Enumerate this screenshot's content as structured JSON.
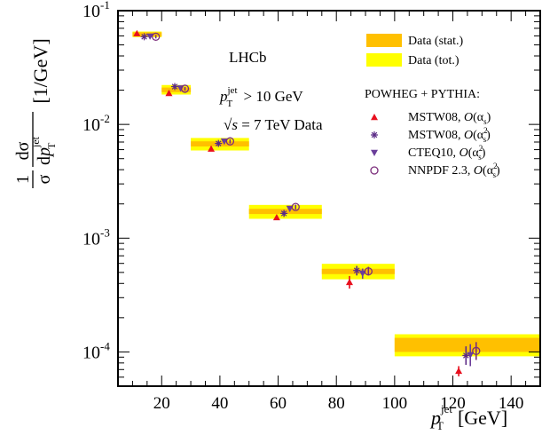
{
  "chart_data": {
    "type": "scatter",
    "x_scale": "linear",
    "y_scale": "log",
    "xlim": [
      5,
      150
    ],
    "ylim": [
      5e-05,
      0.1
    ],
    "x_ticks": [
      20,
      40,
      60,
      80,
      100,
      120,
      140
    ],
    "x_tick_labels": [
      "20",
      "40",
      "60",
      "80",
      "100",
      "120",
      "140"
    ],
    "y_ticks": [
      0.0001,
      0.001,
      0.01,
      0.1
    ],
    "y_tick_labels": [
      {
        "base": "10",
        "exp": "-4"
      },
      {
        "base": "10",
        "exp": "-3"
      },
      {
        "base": "10",
        "exp": "-2"
      },
      {
        "base": "10",
        "exp": "-1"
      }
    ],
    "xlabel": {
      "main": "p",
      "sup": "jet",
      "sub": "T",
      "unit": "[GeV]"
    },
    "ylabel": {
      "num": "1",
      "den": "σ",
      "frac_num": "dσ",
      "frac_den": "dp",
      "frac_sup": "jet",
      "frac_sub": "T",
      "unit": "[1/GeV]"
    },
    "annotations": {
      "experiment": "LHCb",
      "cut_pre": "p",
      "cut_sup": "jet",
      "cut_sub": "T",
      "cut_post": " > 10 GeV",
      "energy_sqrt": "√",
      "energy_s": "s",
      "energy_post": " = 7 TeV Data"
    },
    "legend": {
      "placement": "top-right",
      "data_items": [
        {
          "label": "Data (stat.)",
          "color": "#ffc000"
        },
        {
          "label": "Data (tot.)",
          "color": "#ffff00"
        }
      ],
      "theory_header": "POWHEG + PYTHIA:",
      "theory_items": [
        {
          "label": "MSTW08, ",
          "order_pre": "O(α",
          "order_sub": "s",
          "order_sup": "",
          "order_post": ")",
          "marker": "triangle-up",
          "color": "#e8101e"
        },
        {
          "label": "MSTW08, ",
          "order_pre": "O(α",
          "order_sub": "s",
          "order_sup": "2",
          "order_post": ")",
          "marker": "star",
          "color": "#5b2a86"
        },
        {
          "label": "CTEQ10, ",
          "order_pre": "O(α",
          "order_sub": "s",
          "order_sup": "2",
          "order_post": ")",
          "marker": "triangle-down",
          "color": "#6a3d9a"
        },
        {
          "label": "NNPDF 2.3, ",
          "order_pre": "O(α",
          "order_sub": "s",
          "order_sup": "2",
          "order_post": ")",
          "marker": "circle-open",
          "color": "#7b2d7b"
        }
      ]
    },
    "data_bins": [
      {
        "x_lo": 10,
        "x_hi": 20,
        "y": 0.062,
        "stat_lo": 0.0595,
        "stat_hi": 0.0645,
        "tot_lo": 0.0585,
        "tot_hi": 0.0655
      },
      {
        "x_lo": 20,
        "x_hi": 30,
        "y": 0.0202,
        "stat_lo": 0.0192,
        "stat_hi": 0.0211,
        "tot_lo": 0.0183,
        "tot_hi": 0.0222
      },
      {
        "x_lo": 30,
        "x_hi": 50,
        "y": 0.0067,
        "stat_lo": 0.0064,
        "stat_hi": 0.0071,
        "tot_lo": 0.0059,
        "tot_hi": 0.0076
      },
      {
        "x_lo": 50,
        "x_hi": 75,
        "y": 0.00172,
        "stat_lo": 0.00163,
        "stat_hi": 0.00181,
        "tot_lo": 0.00148,
        "tot_hi": 0.00196
      },
      {
        "x_lo": 75,
        "x_hi": 100,
        "y": 0.00051,
        "stat_lo": 0.000483,
        "stat_hi": 0.000538,
        "tot_lo": 0.000435,
        "tot_hi": 0.000595
      },
      {
        "x_lo": 100,
        "x_hi": 150,
        "y": 0.000116,
        "stat_lo": 0.0001,
        "stat_hi": 0.000133,
        "tot_lo": 9.15e-05,
        "tot_hi": 0.000143
      }
    ],
    "series": [
      {
        "name": "MSTW08, O(αs)",
        "marker": "triangle-up",
        "color": "#e8101e",
        "points": [
          {
            "x": 11.5,
            "y": 0.063,
            "err_lo": 0.061,
            "err_hi": 0.065
          },
          {
            "x": 22.5,
            "y": 0.0188,
            "err_lo": 0.0183,
            "err_hi": 0.0193
          },
          {
            "x": 37,
            "y": 0.0061,
            "err_lo": 0.0058,
            "err_hi": 0.0064
          },
          {
            "x": 59.5,
            "y": 0.00152,
            "err_lo": 0.00145,
            "err_hi": 0.00159
          },
          {
            "x": 84.5,
            "y": 0.00041,
            "err_lo": 0.00036,
            "err_hi": 0.000465
          },
          {
            "x": 122,
            "y": 6.8e-05,
            "err_lo": 6.1e-05,
            "err_hi": 7.5e-05
          }
        ]
      },
      {
        "name": "MSTW08, O(αs²)",
        "marker": "star",
        "color": "#5b2a86",
        "points": [
          {
            "x": 14,
            "y": 0.059,
            "err_lo": 0.057,
            "err_hi": 0.061
          },
          {
            "x": 24.5,
            "y": 0.0215,
            "err_lo": 0.0205,
            "err_hi": 0.0225
          },
          {
            "x": 39.5,
            "y": 0.0068,
            "err_lo": 0.0065,
            "err_hi": 0.0071
          },
          {
            "x": 62,
            "y": 0.00165,
            "err_lo": 0.00156,
            "err_hi": 0.00174
          },
          {
            "x": 87,
            "y": 0.00052,
            "err_lo": 0.00047,
            "err_hi": 0.00057
          },
          {
            "x": 124.5,
            "y": 9.3e-05,
            "err_lo": 7.7e-05,
            "err_hi": 0.000112
          }
        ]
      },
      {
        "name": "CTEQ10, O(αs²)",
        "marker": "triangle-down",
        "color": "#6a3d9a",
        "points": [
          {
            "x": 16,
            "y": 0.0595,
            "err_lo": 0.0575,
            "err_hi": 0.0615
          },
          {
            "x": 26.5,
            "y": 0.0208,
            "err_lo": 0.0199,
            "err_hi": 0.0217
          },
          {
            "x": 41.5,
            "y": 0.0071,
            "err_lo": 0.0068,
            "err_hi": 0.0074
          },
          {
            "x": 64,
            "y": 0.00182,
            "err_lo": 0.00172,
            "err_hi": 0.00192
          },
          {
            "x": 89,
            "y": 0.00049,
            "err_lo": 0.00044,
            "err_hi": 0.00054
          },
          {
            "x": 126,
            "y": 9.4e-05,
            "err_lo": 7.5e-05,
            "err_hi": 0.000117
          }
        ]
      },
      {
        "name": "NNPDF 2.3, O(αs²)",
        "marker": "circle-open",
        "color": "#7b2d7b",
        "points": [
          {
            "x": 18,
            "y": 0.059,
            "err_lo": 0.057,
            "err_hi": 0.061
          },
          {
            "x": 28,
            "y": 0.0206,
            "err_lo": 0.0198,
            "err_hi": 0.0214
          },
          {
            "x": 43.5,
            "y": 0.0071,
            "err_lo": 0.0068,
            "err_hi": 0.0074
          },
          {
            "x": 66,
            "y": 0.00188,
            "err_lo": 0.00179,
            "err_hi": 0.00197
          },
          {
            "x": 91,
            "y": 0.00051,
            "err_lo": 0.00047,
            "err_hi": 0.00056
          },
          {
            "x": 128,
            "y": 0.000102,
            "err_lo": 8.5e-05,
            "err_hi": 0.000122
          }
        ]
      }
    ],
    "grid": false
  }
}
